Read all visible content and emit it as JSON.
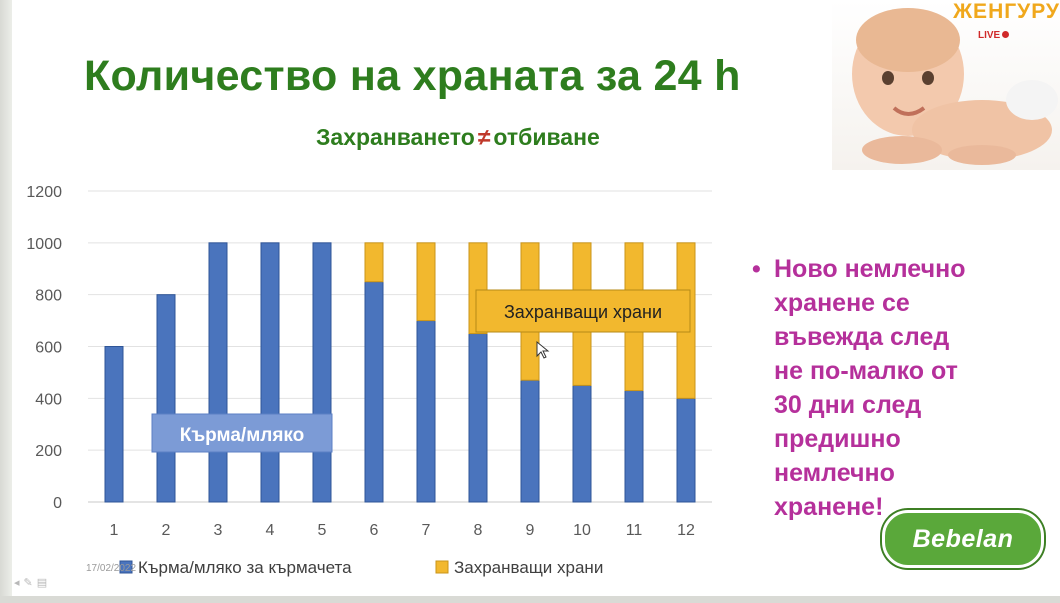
{
  "slide": {
    "title": "Количество на храната за 24 h",
    "subtitle_left": "Захранването",
    "subtitle_symbol": "≠",
    "subtitle_right": "отбиване",
    "bullet_dot": "•",
    "bullet_lines": [
      "Ново немлечно",
      "хранене се",
      "въвежда след",
      "не по-малко от",
      "30 дни след",
      "предишно",
      "немлечно",
      "хранене!"
    ],
    "brand_top": "ЖЕНГУРУ",
    "live_label": "LIVE",
    "logo_text": "Bebelan",
    "datestamp": "17/02/2022"
  },
  "colors": {
    "title_green": "#2e7d1e",
    "milk_blue": "#4a74bd",
    "solid_yellow": "#f2b82e",
    "bullet_magenta": "#b5309b"
  },
  "chart_data": {
    "type": "bar",
    "stacked": true,
    "categories": [
      "1",
      "2",
      "3",
      "4",
      "5",
      "6",
      "7",
      "8",
      "9",
      "10",
      "11",
      "12"
    ],
    "series": [
      {
        "name": "Кърма/мляко за кърмачета",
        "color": "#4a74bd",
        "values": [
          600,
          800,
          1000,
          1000,
          1000,
          850,
          700,
          650,
          470,
          450,
          430,
          400
        ]
      },
      {
        "name": "Захранващи храни",
        "color": "#f2b82e",
        "values": [
          0,
          0,
          0,
          0,
          0,
          150,
          300,
          350,
          530,
          550,
          570,
          600
        ]
      }
    ],
    "yticks": [
      "0",
      "200",
      "400",
      "600",
      "800",
      "1000",
      "1200"
    ],
    "ylim": [
      0,
      1200
    ],
    "grid": true,
    "legend": "bottom",
    "annotations": [
      {
        "text": "Кърма/мляко",
        "style": "blue-box"
      },
      {
        "text": "Захранващи храни",
        "style": "yellow-box"
      }
    ]
  }
}
